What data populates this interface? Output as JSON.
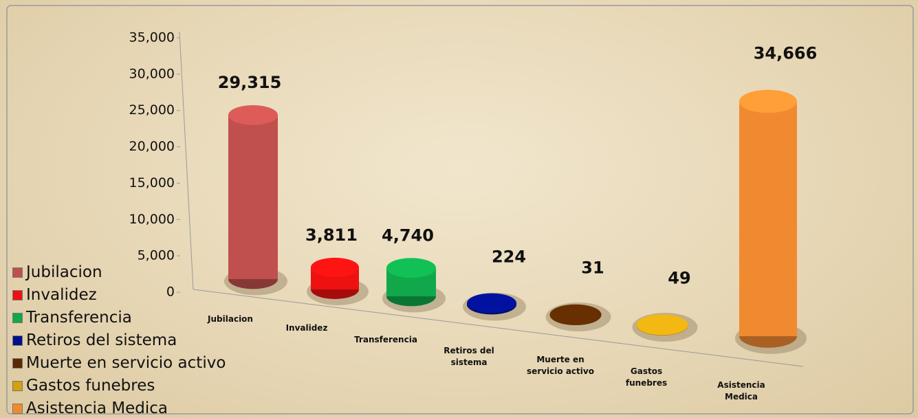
{
  "chart_data": {
    "type": "bar3d",
    "categories": [
      "Jubilacion",
      "Invalidez",
      "Transferencia",
      "Retiros del sistema",
      "Muerte en servicio activo",
      "Gastos funebres",
      "Asistencia Medica"
    ],
    "values": [
      29315,
      3811,
      4740,
      224,
      31,
      49,
      34666
    ],
    "value_labels": [
      "29,315",
      "3,811",
      "4,740",
      "224",
      "31",
      "49",
      "34,666"
    ],
    "colors": [
      "#c0504d",
      "#ee1111",
      "#10a84a",
      "#00108a",
      "#5a2a00",
      "#d4a010",
      "#f08a30"
    ],
    "ylim": [
      0,
      35000
    ],
    "yticks": [
      0,
      {
        "value": 5000,
        "label": "5,000"
      },
      {
        "value": 10000,
        "label": "10,000"
      },
      {
        "value": 15000,
        "label": "15,000"
      },
      {
        "value": 20000,
        "label": "20,000"
      },
      {
        "value": 25000,
        "label": "25,000"
      },
      {
        "value": 30000,
        "label": "30,000"
      },
      {
        "value": 35000,
        "label": "35,000"
      }
    ],
    "legend": "left"
  }
}
